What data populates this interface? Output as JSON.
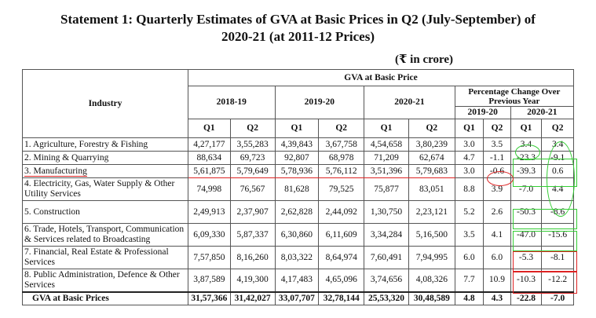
{
  "title_line1": "Statement 1: Quarterly Estimates of GVA at Basic Prices in Q2 (July-September) of",
  "title_line2": "2020-21 (at 2011-12 Prices)",
  "unit": "(₹ in crore)",
  "header": {
    "industry": "Industry",
    "gva": "GVA at Basic Price",
    "y1": "2018-19",
    "y2": "2019-20",
    "y3": "2020-21",
    "pct": "Percentage Change Over Previous Year",
    "pct_y1": "2019-20",
    "pct_y2": "2020-21",
    "q1": "Q1",
    "q2": "Q2"
  },
  "rows": [
    {
      "industry": "1. Agriculture, Forestry & Fishing",
      "vals": [
        "4,27,177",
        "3,55,283",
        "4,39,843",
        "3,67,758",
        "4,54,658",
        "3,80,239",
        "3.0",
        "3.5",
        "3.4",
        "3.4"
      ]
    },
    {
      "industry": "2. Mining & Quarrying",
      "vals": [
        "88,634",
        "69,723",
        "92,807",
        "68,978",
        "71,209",
        "62,674",
        "4.7",
        "-1.1",
        "-23.3",
        "-9.1"
      ]
    },
    {
      "industry": "3. Manufacturing",
      "vals": [
        "5,61,875",
        "5,79,649",
        "5,78,936",
        "5,76,112",
        "3,51,396",
        "5,79,683",
        "3.0",
        "-0.6",
        "-39.3",
        "0.6"
      ]
    },
    {
      "industry": "4. Electricity, Gas, Water Supply & Other Utility Services",
      "vals": [
        "74,998",
        "76,567",
        "81,628",
        "79,525",
        "75,877",
        "83,051",
        "8.8",
        "3.9",
        "-7.0",
        "4.4"
      ]
    },
    {
      "industry": "5. Construction",
      "vals": [
        "2,49,913",
        "2,37,907",
        "2,62,828",
        "2,44,092",
        "1,30,750",
        "2,23,121",
        "5.2",
        "2.6",
        "-50.3",
        "-8.6"
      ]
    },
    {
      "industry": "6. Trade, Hotels, Transport, Communication & Services related to Broadcasting",
      "vals": [
        "6,09,330",
        "5,87,337",
        "6,30,860",
        "6,11,609",
        "3,34,284",
        "5,16,500",
        "3.5",
        "4.1",
        "-47.0",
        "-15.6"
      ]
    },
    {
      "industry": "7. Financial, Real Estate & Professional Services",
      "vals": [
        "7,57,850",
        "8,16,260",
        "8,03,322",
        "8,64,974",
        "7,60,491",
        "7,94,995",
        "6.0",
        "6.0",
        "-5.3",
        "-8.1"
      ]
    },
    {
      "industry": "8. Public Administration, Defence & Other Services",
      "vals": [
        "3,87,589",
        "4,19,300",
        "4,17,483",
        "4,65,096",
        "3,74,656",
        "4,08,326",
        "7.7",
        "10.9",
        "-10.3",
        "-12.2"
      ]
    }
  ],
  "total": {
    "industry": "GVA at Basic Prices",
    "vals": [
      "31,57,366",
      "31,42,027",
      "33,07,707",
      "32,78,144",
      "25,53,320",
      "30,48,589",
      "4.8",
      "4.3",
      "-22.8",
      "-7.0"
    ]
  }
}
